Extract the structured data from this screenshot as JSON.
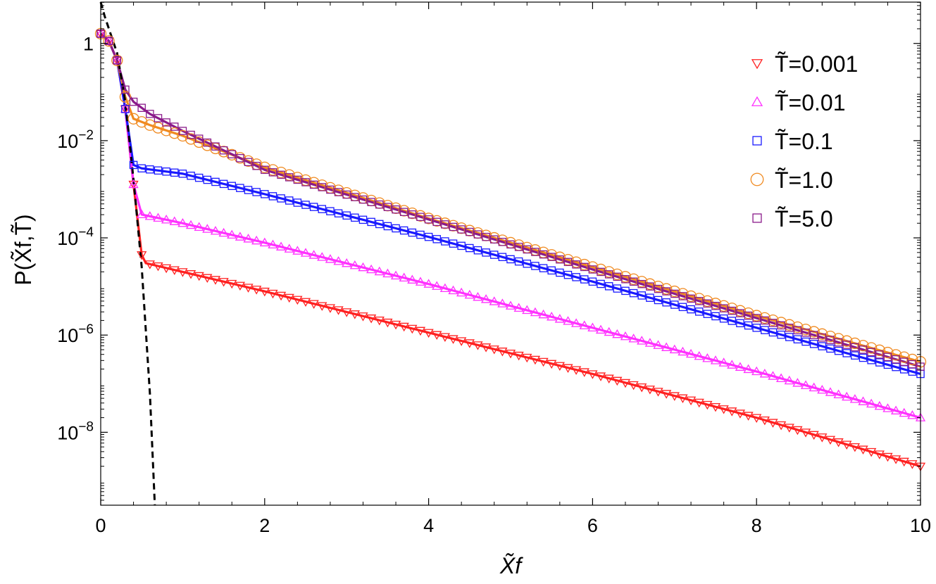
{
  "chart_data": {
    "type": "scatter",
    "xlabel": "X̃f",
    "ylabel": "P(X̃f,T̃)",
    "xlim": [
      0,
      10
    ],
    "ylim_log10": [
      -9.5,
      0.85
    ],
    "yscale": "log",
    "x_ticks": [
      0,
      2,
      4,
      6,
      8,
      10
    ],
    "x_tick_labels": [
      "0",
      "2",
      "4",
      "6",
      "8",
      "10"
    ],
    "y_ticks_log10": [
      0,
      -2,
      -4,
      -6,
      -8
    ],
    "y_tick_labels": [
      "1",
      "10−2",
      "10−4",
      "10−6",
      "10−8"
    ],
    "grid": false,
    "legend_position": "top-right",
    "series": [
      {
        "name": "T̃=0.001",
        "color": "#ff2020",
        "marker": "triangle-down",
        "points": [
          [
            0,
            0.2
          ],
          [
            0.1,
            0.05
          ],
          [
            0.2,
            -0.35
          ],
          [
            0.3,
            -1.35
          ],
          [
            0.4,
            -2.9
          ],
          [
            0.5,
            -4.35
          ],
          [
            0.55,
            -4.52
          ],
          [
            1.0,
            -4.7
          ],
          [
            2.0,
            -5.1
          ],
          [
            4.0,
            -5.95
          ],
          [
            6.0,
            -6.8
          ],
          [
            8.0,
            -7.7
          ],
          [
            10.0,
            -8.7
          ]
        ]
      },
      {
        "name": "T̃=0.01",
        "color": "#ff30ff",
        "marker": "triangle-up",
        "points": [
          [
            0,
            0.2
          ],
          [
            0.1,
            0.05
          ],
          [
            0.2,
            -0.35
          ],
          [
            0.3,
            -1.35
          ],
          [
            0.4,
            -2.9
          ],
          [
            0.5,
            -3.52
          ],
          [
            1.0,
            -3.7
          ],
          [
            2.0,
            -4.1
          ],
          [
            4.0,
            -4.95
          ],
          [
            6.0,
            -5.85
          ],
          [
            8.0,
            -6.75
          ],
          [
            10.0,
            -7.7
          ]
        ]
      },
      {
        "name": "T̃=0.1",
        "color": "#1a1aff",
        "marker": "square",
        "points": [
          [
            0,
            0.2
          ],
          [
            0.1,
            0.05
          ],
          [
            0.2,
            -0.35
          ],
          [
            0.3,
            -1.35
          ],
          [
            0.4,
            -2.5
          ],
          [
            0.5,
            -2.57
          ],
          [
            1.0,
            -2.68
          ],
          [
            2.0,
            -3.1
          ],
          [
            4.0,
            -3.98
          ],
          [
            6.0,
            -4.9
          ],
          [
            8.0,
            -5.85
          ],
          [
            10.0,
            -6.8
          ]
        ]
      },
      {
        "name": "T̃=1.0",
        "color": "#f08a20",
        "marker": "circle",
        "points": [
          [
            0,
            0.2
          ],
          [
            0.1,
            0.05
          ],
          [
            0.2,
            -0.35
          ],
          [
            0.3,
            -1.1
          ],
          [
            0.4,
            -1.55
          ],
          [
            0.6,
            -1.68
          ],
          [
            1.0,
            -1.9
          ],
          [
            2.0,
            -2.55
          ],
          [
            4.0,
            -3.6
          ],
          [
            6.0,
            -4.6
          ],
          [
            8.0,
            -5.6
          ],
          [
            10.0,
            -6.55
          ]
        ]
      },
      {
        "name": "T̃=5.0",
        "color": "#8a1a8a",
        "marker": "square",
        "points": [
          [
            0,
            0.2
          ],
          [
            0.1,
            0.05
          ],
          [
            0.2,
            -0.35
          ],
          [
            0.3,
            -0.95
          ],
          [
            0.4,
            -1.2
          ],
          [
            0.6,
            -1.45
          ],
          [
            1.0,
            -1.8
          ],
          [
            2.0,
            -2.6
          ],
          [
            4.0,
            -3.62
          ],
          [
            6.0,
            -4.65
          ],
          [
            8.0,
            -5.65
          ],
          [
            10.0,
            -6.65
          ]
        ]
      }
    ],
    "reference_curve": {
      "style": "dashed",
      "color": "#000000",
      "points": [
        [
          0,
          0.85
        ],
        [
          0.05,
          0.55
        ],
        [
          0.1,
          0.3
        ],
        [
          0.2,
          -0.2
        ],
        [
          0.3,
          -1.2
        ],
        [
          0.4,
          -2.8
        ],
        [
          0.5,
          -4.6
        ],
        [
          0.6,
          -7.2
        ],
        [
          0.66,
          -9.5
        ]
      ]
    }
  }
}
